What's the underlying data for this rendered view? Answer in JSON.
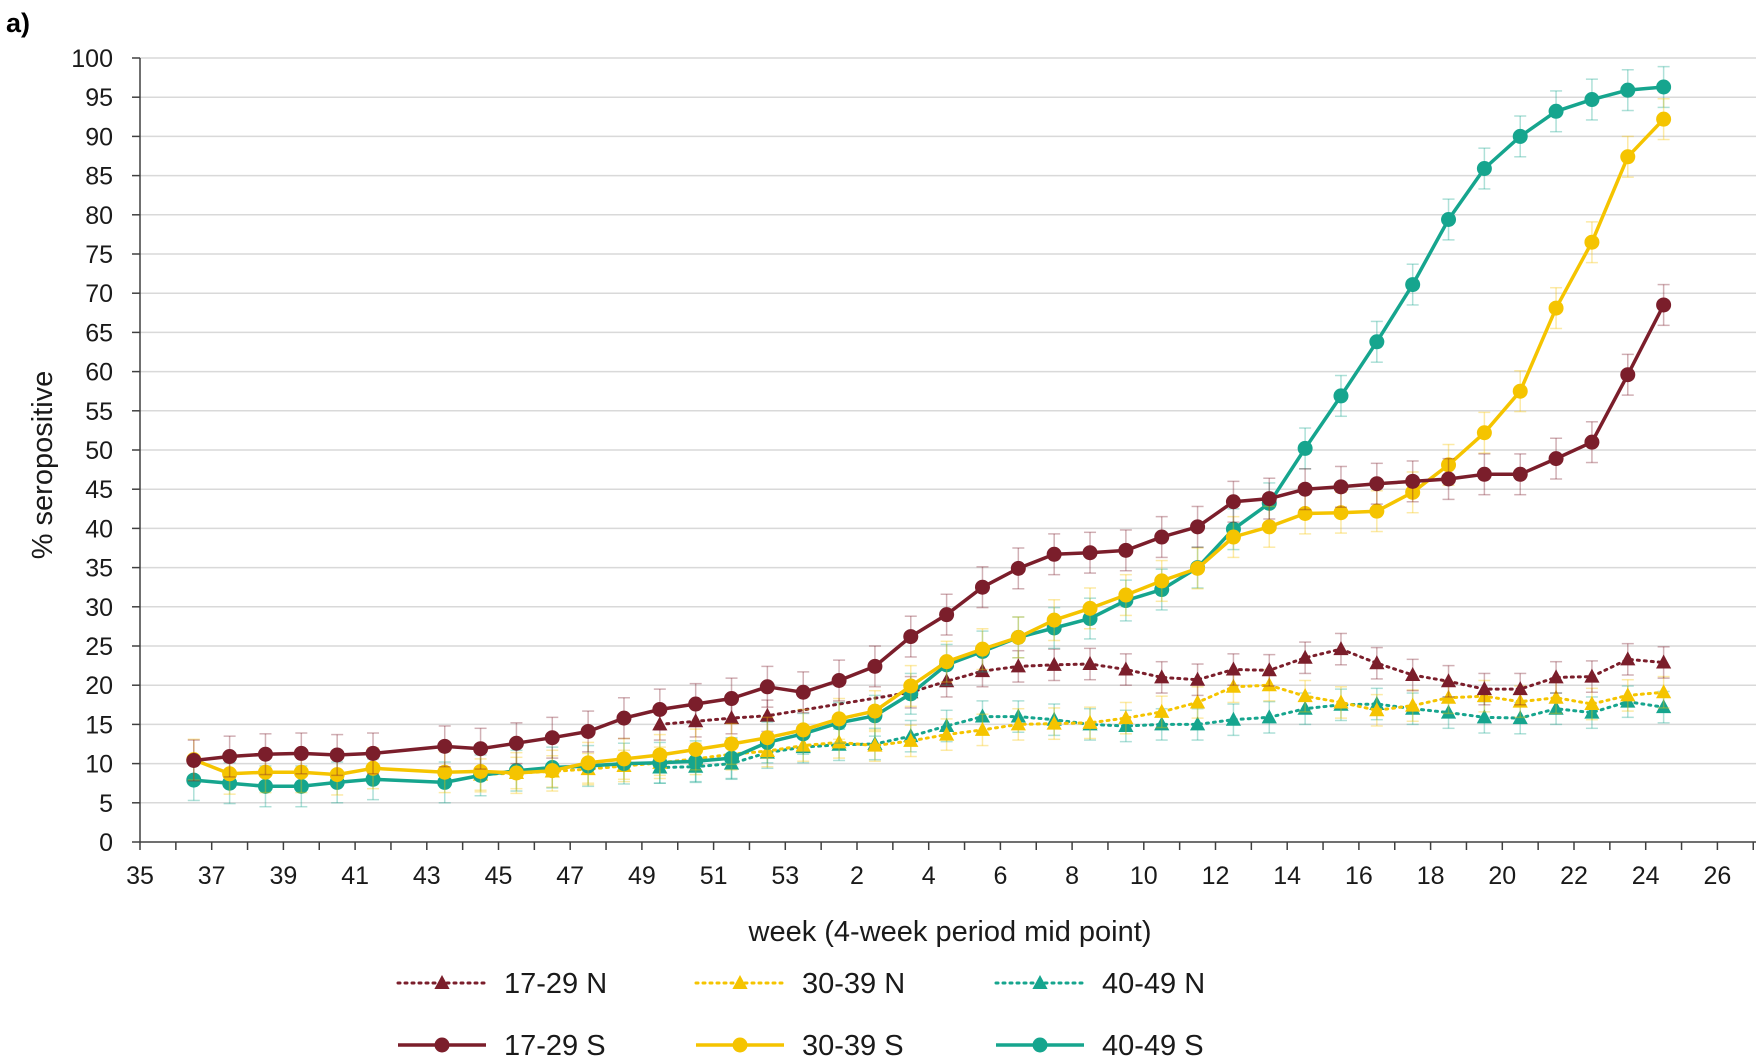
{
  "chart_data": {
    "type": "line",
    "panel_label": "a)",
    "title": "",
    "xlabel": "week (4-week period mid point)",
    "ylabel": "% seropositive",
    "ylim": [
      0,
      100
    ],
    "y_ticks": [
      "0",
      "5",
      "10",
      "15",
      "20",
      "25",
      "30",
      "35",
      "40",
      "45",
      "50",
      "55",
      "60",
      "65",
      "70",
      "75",
      "80",
      "85",
      "90",
      "95",
      "100"
    ],
    "x_tick_labels": [
      "35",
      "37",
      "39",
      "41",
      "43",
      "45",
      "47",
      "49",
      "51",
      "53",
      "2",
      "4",
      "6",
      "8",
      "10",
      "12",
      "14",
      "16",
      "18",
      "20",
      "22",
      "24",
      "26"
    ],
    "grid": "horizontal",
    "legend_position": "bottom",
    "x_weeks": [
      "36.5",
      "37.5",
      "38.5",
      "39.5",
      "40.5",
      "41.5",
      "43.5",
      "44.5",
      "45.5",
      "46.5",
      "47.5",
      "48.5",
      "49.5",
      "50.5",
      "51.5",
      "52.5",
      "53.5",
      "1.5",
      "2.5",
      "3.5",
      "4.5",
      "5.5",
      "6.5",
      "7.5",
      "8.5",
      "9.5",
      "10.5",
      "11.5",
      "12.5",
      "13.5",
      "14.5",
      "15.5",
      "16.5",
      "17.5",
      "18.5",
      "19.5",
      "20.5",
      "21.5",
      "22.5",
      "23.5",
      "24.5"
    ],
    "series": [
      {
        "name": "17-29 N",
        "color": "#7B1E2B",
        "style": "dotted",
        "marker": "triangle",
        "values": [
          null,
          null,
          null,
          null,
          null,
          null,
          null,
          null,
          null,
          null,
          null,
          null,
          15.0,
          15.4,
          15.8,
          16.1,
          null,
          null,
          null,
          19.1,
          20.5,
          21.8,
          22.4,
          22.6,
          22.7,
          22.0,
          21.0,
          20.7,
          22.0,
          21.9,
          23.5,
          24.6,
          22.8,
          21.3,
          20.5,
          19.5,
          19.5,
          21.0,
          21.1,
          23.3,
          22.9
        ]
      },
      {
        "name": "30-39 N",
        "color": "#F5C400",
        "style": "dotted",
        "marker": "triangle",
        "values": [
          null,
          null,
          null,
          null,
          null,
          null,
          null,
          8.6,
          8.8,
          9.0,
          9.3,
          9.7,
          10.1,
          10.6,
          11.2,
          11.6,
          12.3,
          12.7,
          12.3,
          12.9,
          13.7,
          14.3,
          15.0,
          15.1,
          15.2,
          15.8,
          16.6,
          17.8,
          19.8,
          20.0,
          18.6,
          17.8,
          16.8,
          17.4,
          18.4,
          18.6,
          17.9,
          18.4,
          17.6,
          18.7,
          19.1
        ]
      },
      {
        "name": "40-49 N",
        "color": "#16A58E",
        "style": "dotted",
        "marker": "triangle",
        "values": [
          null,
          null,
          null,
          null,
          null,
          null,
          null,
          null,
          null,
          null,
          null,
          null,
          9.5,
          9.6,
          10.0,
          11.4,
          12.1,
          12.4,
          12.5,
          13.5,
          14.8,
          16.0,
          16.0,
          15.6,
          15.0,
          14.8,
          15.0,
          15.0,
          15.6,
          15.9,
          17.0,
          17.5,
          17.6,
          17.0,
          16.5,
          15.9,
          15.8,
          17.0,
          16.5,
          17.9,
          17.2
        ]
      },
      {
        "name": "17-29 S",
        "color": "#7B1E2B",
        "style": "solid",
        "marker": "circle",
        "values": [
          10.4,
          10.9,
          11.2,
          11.3,
          11.1,
          11.3,
          12.2,
          11.9,
          12.6,
          13.3,
          14.1,
          15.8,
          16.9,
          17.6,
          18.3,
          19.8,
          19.1,
          20.6,
          22.4,
          26.2,
          29.0,
          32.5,
          34.9,
          36.7,
          36.9,
          37.2,
          38.9,
          40.2,
          43.4,
          43.8,
          45.0,
          45.3,
          45.7,
          46.0,
          46.3,
          46.9,
          46.9,
          48.9,
          51.0,
          59.6,
          68.5
        ]
      },
      {
        "name": "30-39 S",
        "color": "#F5C400",
        "style": "solid",
        "marker": "circle",
        "values": [
          10.5,
          8.7,
          8.9,
          8.9,
          8.6,
          9.4,
          8.9,
          9.0,
          8.8,
          9.1,
          10.1,
          10.6,
          11.1,
          11.8,
          12.5,
          13.3,
          14.3,
          15.7,
          16.7,
          19.9,
          23.0,
          24.6,
          26.1,
          28.3,
          29.8,
          31.5,
          33.3,
          34.9,
          38.9,
          40.2,
          41.9,
          42.0,
          42.2,
          44.6,
          48.1,
          52.2,
          57.5,
          68.1,
          76.5,
          87.4,
          92.2
        ]
      },
      {
        "name": "40-49 S",
        "color": "#16A58E",
        "style": "solid",
        "marker": "circle",
        "values": [
          7.9,
          7.5,
          7.1,
          7.1,
          7.6,
          8.0,
          7.6,
          8.5,
          9.1,
          9.5,
          9.7,
          10.0,
          10.1,
          10.3,
          10.7,
          12.7,
          13.8,
          15.2,
          16.1,
          18.9,
          22.6,
          24.3,
          26.1,
          27.3,
          28.5,
          30.8,
          32.2,
          35.0,
          39.9,
          43.2,
          50.2,
          56.9,
          63.8,
          71.1,
          79.4,
          85.9,
          90.0,
          93.2,
          94.7,
          95.9,
          96.3
        ]
      }
    ]
  }
}
